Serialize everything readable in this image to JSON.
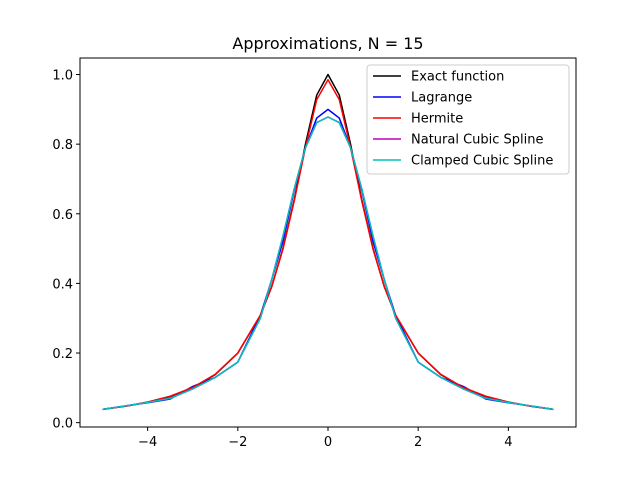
{
  "chart_data": {
    "type": "line",
    "title": "Approximations, N = 15",
    "xlabel": "",
    "ylabel": "",
    "xlim": [
      -5.5,
      5.5
    ],
    "ylim": [
      -0.0125,
      1.0475
    ],
    "xticks": [
      -4,
      -2,
      0,
      2,
      4
    ],
    "yticks": [
      0.0,
      0.2,
      0.4,
      0.6,
      0.8,
      1.0
    ],
    "xtick_labels": [
      "−4",
      "−2",
      "0",
      "2",
      "4"
    ],
    "ytick_labels": [
      "0.0",
      "0.2",
      "0.4",
      "0.6",
      "0.8",
      "1.0"
    ],
    "grid": false,
    "legend_location": "upper right",
    "series": [
      {
        "name": "Exact function",
        "color": "#000000",
        "x": [
          -5,
          -4.5,
          -4,
          -3.5,
          -3,
          -2.5,
          -2,
          -1.5,
          -1.25,
          -1,
          -0.75,
          -0.5,
          -0.25,
          0,
          0.25,
          0.5,
          0.75,
          1,
          1.25,
          1.5,
          2,
          2.5,
          3,
          3.5,
          4,
          4.5,
          5
        ],
        "y": [
          0.038,
          0.047,
          0.059,
          0.075,
          0.1,
          0.138,
          0.2,
          0.308,
          0.39,
          0.5,
          0.64,
          0.8,
          0.941,
          1.0,
          0.941,
          0.8,
          0.64,
          0.5,
          0.39,
          0.308,
          0.2,
          0.138,
          0.1,
          0.075,
          0.059,
          0.047,
          0.038
        ]
      },
      {
        "name": "Lagrange",
        "color": "#0000ff",
        "x": [
          -5,
          -4.5,
          -4,
          -3.5,
          -3,
          -2.5,
          -2,
          -1.5,
          -1.25,
          -1,
          -0.75,
          -0.5,
          -0.25,
          0,
          0.25,
          0.5,
          0.75,
          1,
          1.25,
          1.5,
          2,
          2.5,
          3,
          3.5,
          4,
          4.5,
          5
        ],
        "y": [
          0.038,
          0.048,
          0.057,
          0.068,
          0.104,
          0.13,
          0.174,
          0.308,
          0.41,
          0.52,
          0.667,
          0.79,
          0.875,
          0.9,
          0.875,
          0.79,
          0.667,
          0.52,
          0.41,
          0.308,
          0.174,
          0.13,
          0.104,
          0.068,
          0.057,
          0.048,
          0.038
        ]
      },
      {
        "name": "Hermite",
        "color": "#ff0000",
        "x": [
          -5,
          -4.5,
          -4,
          -3.5,
          -3,
          -2.5,
          -2,
          -1.5,
          -1.25,
          -1,
          -0.75,
          -0.5,
          -0.25,
          0,
          0.25,
          0.5,
          0.75,
          1,
          1.25,
          1.5,
          2,
          2.5,
          3,
          3.5,
          4,
          4.5,
          5
        ],
        "y": [
          0.038,
          0.047,
          0.059,
          0.076,
          0.101,
          0.139,
          0.2,
          0.309,
          0.39,
          0.498,
          0.636,
          0.79,
          0.928,
          0.985,
          0.928,
          0.79,
          0.636,
          0.498,
          0.39,
          0.309,
          0.2,
          0.139,
          0.101,
          0.076,
          0.059,
          0.047,
          0.038
        ]
      },
      {
        "name": "Natural Cubic Spline",
        "color": "#bf00bf",
        "x": [
          -5,
          -4.5,
          -4,
          -3.5,
          -3,
          -2.5,
          -2,
          -1.5,
          -1.25,
          -1,
          -0.75,
          -0.5,
          -0.25,
          0,
          0.25,
          0.5,
          0.75,
          1,
          1.25,
          1.5,
          2,
          2.5,
          3,
          3.5,
          4,
          4.5,
          5
        ],
        "y": [
          0.038,
          0.048,
          0.058,
          0.07,
          0.097,
          0.13,
          0.174,
          0.3,
          0.41,
          0.535,
          0.671,
          0.79,
          0.862,
          0.878,
          0.862,
          0.79,
          0.671,
          0.535,
          0.41,
          0.3,
          0.174,
          0.13,
          0.097,
          0.07,
          0.058,
          0.048,
          0.038
        ]
      },
      {
        "name": "Clamped Cubic Spline",
        "color": "#00bfbf",
        "x": [
          -5,
          -4.5,
          -4,
          -3.5,
          -3,
          -2.5,
          -2,
          -1.5,
          -1.25,
          -1,
          -0.75,
          -0.5,
          -0.25,
          0,
          0.25,
          0.5,
          0.75,
          1,
          1.25,
          1.5,
          2,
          2.5,
          3,
          3.5,
          4,
          4.5,
          5
        ],
        "y": [
          0.038,
          0.048,
          0.058,
          0.07,
          0.097,
          0.13,
          0.174,
          0.3,
          0.41,
          0.535,
          0.671,
          0.79,
          0.862,
          0.878,
          0.862,
          0.79,
          0.671,
          0.535,
          0.41,
          0.3,
          0.174,
          0.13,
          0.097,
          0.07,
          0.058,
          0.048,
          0.038
        ]
      }
    ]
  }
}
